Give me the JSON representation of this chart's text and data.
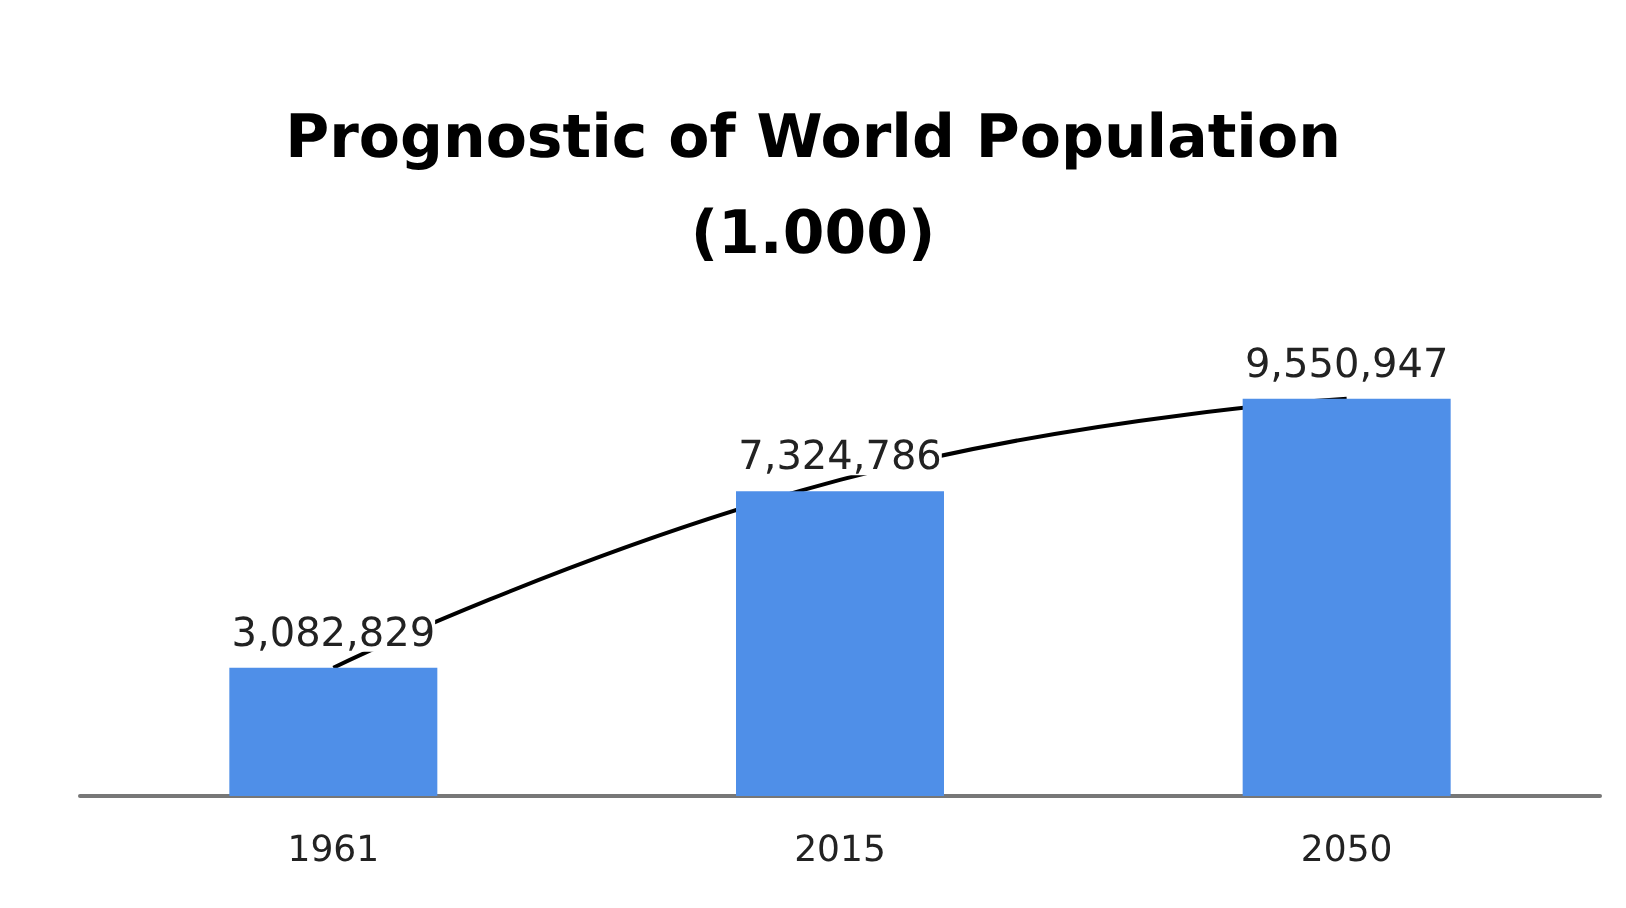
{
  "chart_data": {
    "type": "bar",
    "title": "Prognostic of World Population\n(1.000)",
    "categories": [
      "1961",
      "2015",
      "2050"
    ],
    "series": [
      {
        "color": "#4f8fe8",
        "values": [
          3082829,
          7324786,
          9550947
        ],
        "value_labels": [
          "3,082,829",
          "7,324,786",
          "9,550,947"
        ]
      },
      {
        "type": "line",
        "color": "#000000",
        "values": [
          3082829,
          7600000,
          9550947
        ],
        "marker": "none"
      }
    ]
  }
}
